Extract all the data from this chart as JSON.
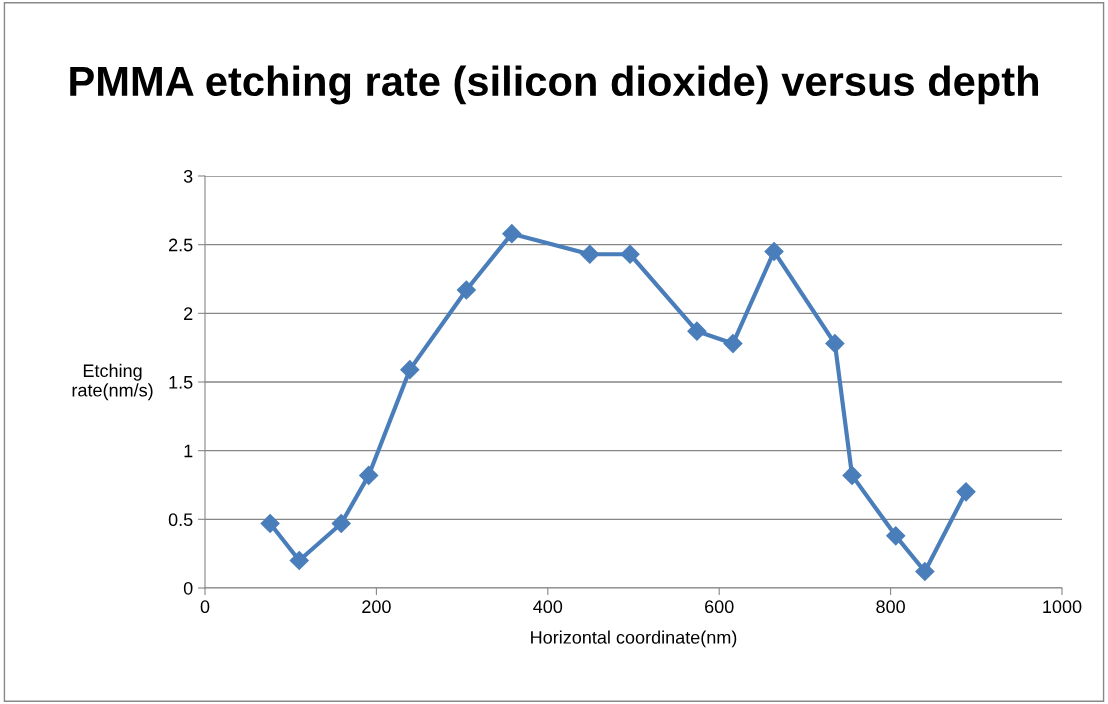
{
  "chart_data": {
    "type": "line",
    "title": "PMMA etching rate (silicon dioxide) versus depth",
    "xlabel": "Horizontal coordinate(nm)",
    "ylabel": "Etching\nrate(nm/s)",
    "x": [
      76,
      110,
      159,
      191,
      239,
      305,
      358,
      449,
      496,
      574,
      616,
      664,
      735,
      755,
      806,
      840,
      888
    ],
    "series": [
      {
        "color": "#4a7ebb",
        "values": [
          0.47,
          0.2,
          0.47,
          0.82,
          1.59,
          2.17,
          2.58,
          2.43,
          2.43,
          1.87,
          1.78,
          2.45,
          1.78,
          0.82,
          0.38,
          0.12,
          0.7
        ]
      }
    ],
    "xlim": [
      0,
      1000
    ],
    "xticks": [
      0,
      200,
      400,
      600,
      800,
      1000
    ],
    "ylim": [
      0,
      3
    ],
    "yticks": [
      0,
      0.5,
      1,
      1.5,
      2,
      2.5,
      3
    ],
    "grid": "y",
    "marker": "diamond",
    "line_style": "solid",
    "legend": false
  }
}
